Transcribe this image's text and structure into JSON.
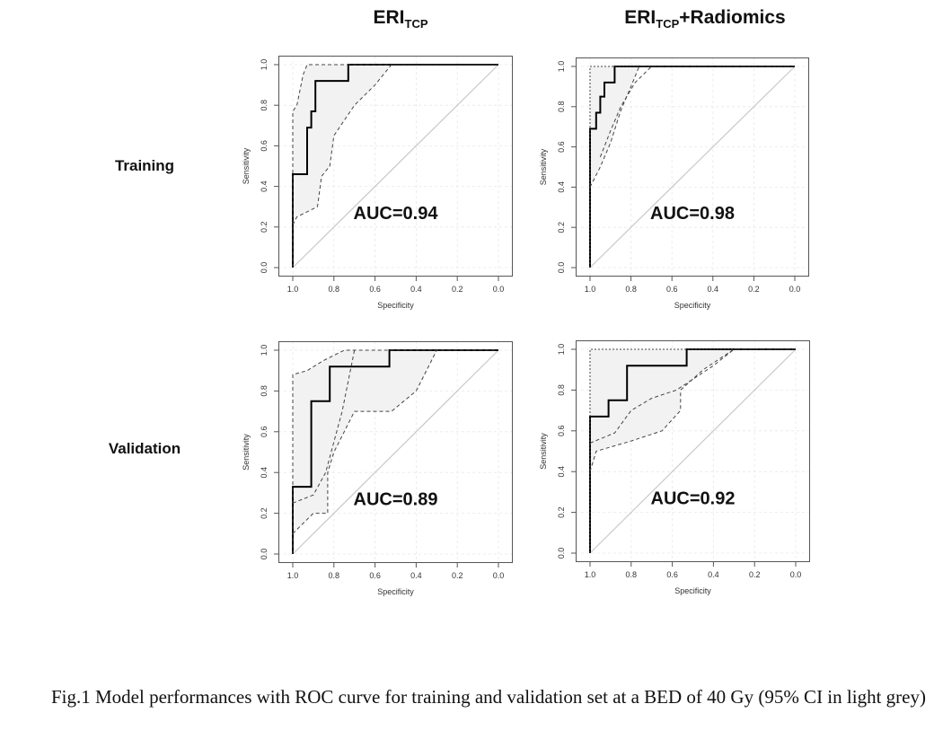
{
  "columns": [
    {
      "title_main": "ERI",
      "title_sub": "TCP",
      "title_suffix": ""
    },
    {
      "title_main": "ERI",
      "title_sub": "TCP",
      "title_suffix": "+Radiomics"
    }
  ],
  "rows": [
    {
      "label": "Training"
    },
    {
      "label": "Validation"
    }
  ],
  "caption": "Fig.1 Model performances with ROC curve for training and validation set at a BED of 40 Gy (95% CI in light grey)",
  "colors": {
    "roc": "#000000",
    "ci_fill": "#f2f2f2",
    "ci_border": "#444444",
    "diagonal": "#c8c8c8",
    "grid": "#e8e8e8"
  },
  "chart_data": [
    {
      "type": "line",
      "panel": "Training / ERI_TCP",
      "title": "",
      "xlabel": "Specificity",
      "ylabel": "Sensitivity",
      "xlim": [
        1.0,
        0.0
      ],
      "ylim": [
        0.0,
        1.0
      ],
      "x_reversed": true,
      "xticks": [
        "1.0",
        "0.8",
        "0.6",
        "0.4",
        "0.2",
        "0.0"
      ],
      "yticks": [
        "0.0",
        "0.2",
        "0.4",
        "0.6",
        "0.8",
        "1.0"
      ],
      "grid": true,
      "annotation": "AUC=0.94",
      "auc": 0.94,
      "series": [
        {
          "role": "roc",
          "x": [
            1.0,
            1.0,
            0.93,
            0.93,
            0.91,
            0.91,
            0.89,
            0.89,
            0.86,
            0.86,
            0.73,
            0.73,
            0.0
          ],
          "y": [
            0.0,
            0.46,
            0.46,
            0.69,
            0.69,
            0.77,
            0.77,
            0.92,
            0.92,
            0.92,
            0.92,
            1.0,
            1.0
          ]
        },
        {
          "role": "ci_upper",
          "x": [
            1.0,
            1.0,
            0.98,
            0.95,
            0.93,
            0.88,
            0.0
          ],
          "y": [
            0.0,
            0.77,
            0.8,
            0.95,
            1.0,
            1.0,
            1.0
          ]
        },
        {
          "role": "ci_lower",
          "x": [
            1.0,
            0.98,
            0.88,
            0.86,
            0.82,
            0.8,
            0.7,
            0.6,
            0.52,
            0.0
          ],
          "y": [
            0.21,
            0.25,
            0.3,
            0.45,
            0.5,
            0.65,
            0.8,
            0.9,
            1.0,
            1.0
          ]
        }
      ]
    },
    {
      "type": "line",
      "panel": "Training / ERI_TCP+Radiomics",
      "title": "",
      "xlabel": "Specificity",
      "ylabel": "Sensitivity",
      "xlim": [
        1.0,
        0.0
      ],
      "ylim": [
        0.0,
        1.0
      ],
      "x_reversed": true,
      "xticks": [
        "1.0",
        "0.8",
        "0.6",
        "0.4",
        "0.2",
        "0.0"
      ],
      "yticks": [
        "0.0",
        "0.2",
        "0.4",
        "0.6",
        "0.8",
        "1.0"
      ],
      "grid": true,
      "annotation": "AUC=0.98",
      "auc": 0.98,
      "series": [
        {
          "role": "roc",
          "x": [
            1.0,
            1.0,
            0.97,
            0.97,
            0.95,
            0.95,
            0.93,
            0.93,
            0.88,
            0.88,
            0.0
          ],
          "y": [
            0.0,
            0.69,
            0.69,
            0.77,
            0.77,
            0.85,
            0.85,
            0.92,
            0.92,
            1.0,
            1.0
          ]
        },
        {
          "role": "ci_upper",
          "x": [
            1.0,
            1.0,
            0.0
          ],
          "y": [
            0.0,
            1.0,
            1.0
          ]
        },
        {
          "role": "ci_lower",
          "x": [
            1.0,
            0.95,
            0.9,
            0.85,
            0.8,
            0.76,
            0.0
          ],
          "y": [
            0.4,
            0.5,
            0.62,
            0.78,
            0.9,
            1.0,
            1.0
          ]
        },
        {
          "role": "ci_inner",
          "x": [
            0.95,
            0.9,
            0.85,
            0.78,
            0.7,
            0.0
          ],
          "y": [
            0.55,
            0.68,
            0.8,
            0.92,
            1.0,
            1.0
          ]
        }
      ]
    },
    {
      "type": "line",
      "panel": "Validation / ERI_TCP",
      "title": "",
      "xlabel": "Specificity",
      "ylabel": "Sensitivity",
      "xlim": [
        1.0,
        0.0
      ],
      "ylim": [
        0.0,
        1.0
      ],
      "x_reversed": true,
      "xticks": [
        "1.0",
        "0.8",
        "0.6",
        "0.4",
        "0.2",
        "0.0"
      ],
      "yticks": [
        "0.0",
        "0.2",
        "0.4",
        "0.6",
        "0.8",
        "1.0"
      ],
      "grid": true,
      "annotation": "AUC=0.89",
      "auc": 0.89,
      "series": [
        {
          "role": "roc",
          "x": [
            1.0,
            1.0,
            0.91,
            0.91,
            0.82,
            0.82,
            0.53,
            0.53,
            0.0
          ],
          "y": [
            0.0,
            0.33,
            0.33,
            0.75,
            0.75,
            0.92,
            0.92,
            1.0,
            1.0
          ]
        },
        {
          "role": "ci_upper",
          "x": [
            1.0,
            1.0,
            0.93,
            0.85,
            0.75,
            0.7,
            0.0
          ],
          "y": [
            0.0,
            0.88,
            0.9,
            0.95,
            1.0,
            1.0,
            1.0
          ]
        },
        {
          "role": "ci_lower",
          "x": [
            1.0,
            0.9,
            0.83,
            0.83,
            0.8,
            0.75,
            0.7,
            0.52,
            0.4,
            0.3,
            0.0
          ],
          "y": [
            0.1,
            0.2,
            0.2,
            0.4,
            0.5,
            0.6,
            0.7,
            0.7,
            0.8,
            1.0,
            1.0
          ]
        },
        {
          "role": "ci_inner",
          "x": [
            1.0,
            0.9,
            0.84,
            0.8,
            0.76,
            0.7
          ],
          "y": [
            0.25,
            0.29,
            0.4,
            0.55,
            0.7,
            1.0
          ]
        }
      ]
    },
    {
      "type": "line",
      "panel": "Validation / ERI_TCP+Radiomics",
      "title": "",
      "xlabel": "Specificity",
      "ylabel": "Sensitivity",
      "xlim": [
        1.0,
        0.0
      ],
      "ylim": [
        0.0,
        1.0
      ],
      "x_reversed": true,
      "xticks": [
        "1.0",
        "0.8",
        "0.6",
        "0.4",
        "0.2",
        "0.0"
      ],
      "yticks": [
        "0.0",
        "0.2",
        "0.4",
        "0.6",
        "0.8",
        "1.0"
      ],
      "grid": true,
      "annotation": "AUC=0.92",
      "auc": 0.92,
      "series": [
        {
          "role": "roc",
          "x": [
            1.0,
            1.0,
            0.91,
            0.91,
            0.82,
            0.82,
            0.53,
            0.53,
            0.0
          ],
          "y": [
            0.0,
            0.67,
            0.67,
            0.75,
            0.75,
            0.92,
            0.92,
            1.0,
            1.0
          ]
        },
        {
          "role": "ci_upper",
          "x": [
            1.0,
            1.0,
            0.0
          ],
          "y": [
            0.0,
            1.0,
            1.0
          ]
        },
        {
          "role": "ci_lower",
          "x": [
            1.0,
            0.97,
            0.8,
            0.65,
            0.56,
            0.56,
            0.45,
            0.3,
            0.0
          ],
          "y": [
            0.4,
            0.5,
            0.55,
            0.6,
            0.7,
            0.8,
            0.9,
            1.0,
            1.0
          ]
        },
        {
          "role": "ci_inner",
          "x": [
            1.0,
            0.88,
            0.8,
            0.7,
            0.58,
            0.4,
            0.3
          ],
          "y": [
            0.54,
            0.59,
            0.7,
            0.76,
            0.8,
            0.92,
            1.0
          ]
        }
      ]
    }
  ]
}
